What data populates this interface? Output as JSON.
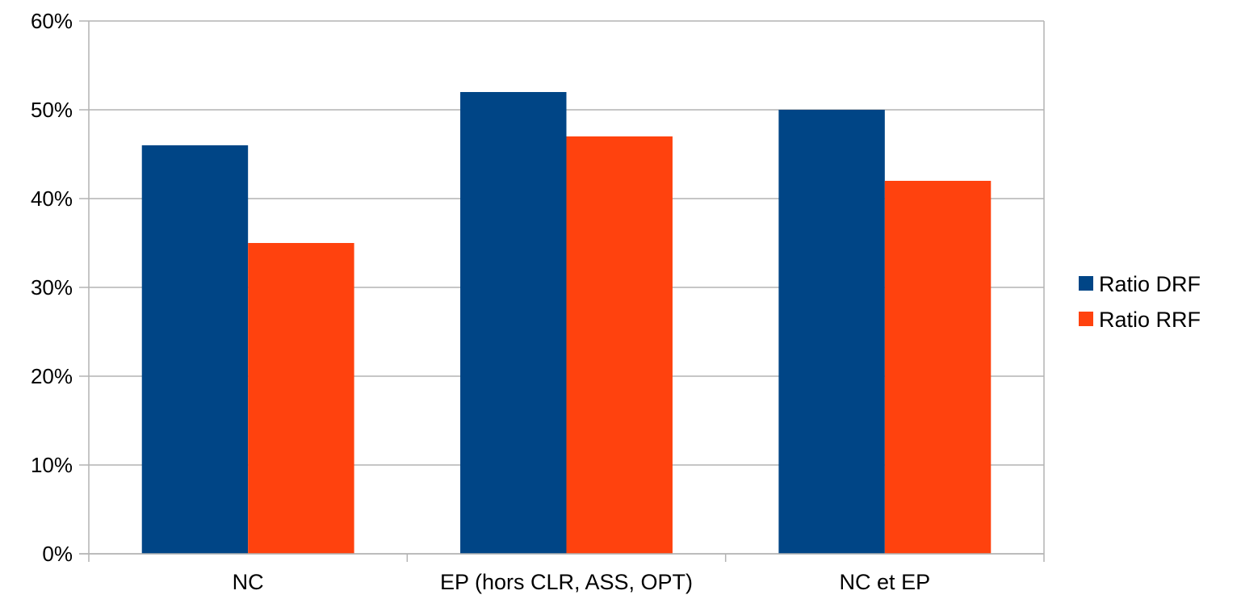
{
  "chart_data": {
    "type": "bar",
    "title": "",
    "xlabel": "",
    "ylabel": "",
    "categories": [
      "NC",
      "EP (hors CLR, ASS, OPT)",
      "NC et EP"
    ],
    "series": [
      {
        "name": "Ratio DRF",
        "values": [
          46,
          52,
          50
        ],
        "color": "#004586"
      },
      {
        "name": "Ratio RRF",
        "values": [
          35,
          47,
          42
        ],
        "color": "#ff420e"
      }
    ],
    "ylim": [
      0,
      60
    ],
    "y_tick_step": 10,
    "y_tick_suffix": "%",
    "grid": true,
    "legend_position": "right"
  }
}
